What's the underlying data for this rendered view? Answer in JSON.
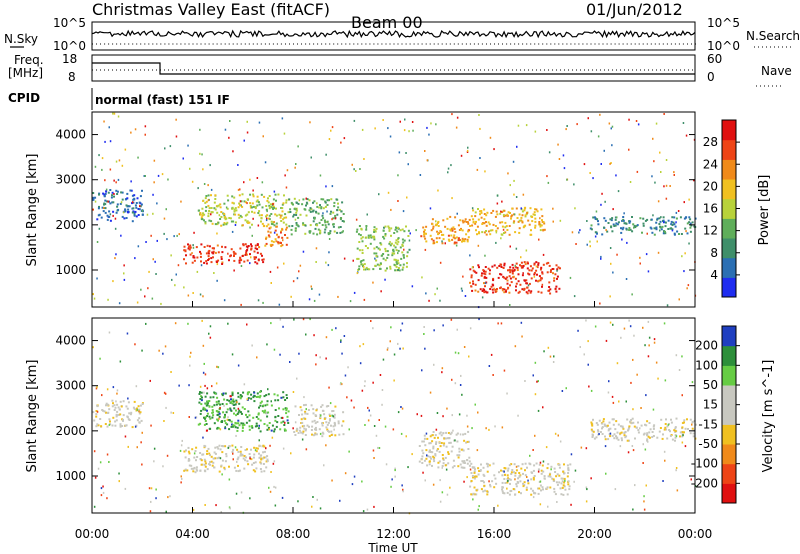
{
  "header": {
    "station": "Christmas Valley East (fitACF)",
    "beam": "Beam 00",
    "date": "01/Jun/2012"
  },
  "sky_panel": {
    "left_label": "N.Sky",
    "right_label": "N.Search",
    "left_ticks": [
      "10^5",
      "10^0"
    ],
    "right_ticks": [
      "10^5",
      "10^0"
    ]
  },
  "freq_panel": {
    "left_label_1": "Freq.",
    "left_label_2": "[MHz]",
    "right_label": "Nave",
    "left_ticks": [
      "18",
      "8"
    ],
    "right_ticks": [
      "60",
      "0"
    ]
  },
  "cpid": {
    "label": "CPID",
    "mode": "normal (fast) 151 IF"
  },
  "x_axis": {
    "title": "Time UT",
    "ticks": [
      "00:00",
      "04:00",
      "08:00",
      "12:00",
      "16:00",
      "20:00",
      "00:00"
    ]
  },
  "colors": {
    "power": [
      "#1f2df0",
      "#2b6fb3",
      "#3f8f6a",
      "#5fae5a",
      "#b8d23a",
      "#f0c020",
      "#f08a1a",
      "#ee4416",
      "#e01010"
    ],
    "velocity": [
      "#e01010",
      "#ee4416",
      "#f08a1a",
      "#f0c020",
      "#c8c8c0",
      "#c8c8c0",
      "#66cc44",
      "#2d8f3a",
      "#1f3fc0"
    ]
  },
  "chart_data": [
    {
      "type": "heatmap",
      "panel": "power",
      "xlabel": "",
      "ylabel": "Slant Range [km]",
      "xlim": [
        0,
        24
      ],
      "ylim": [
        180,
        4500
      ],
      "y_ticks": [
        1000,
        2000,
        3000,
        4000
      ],
      "colorbar": {
        "label": "Power [dB]",
        "ticks": [
          4,
          8,
          12,
          16,
          20,
          24,
          28
        ],
        "range": [
          0,
          32
        ]
      },
      "echo_regions": [
        {
          "t": [
            0.0,
            2.0
          ],
          "range": [
            2100,
            2800
          ],
          "level": 5
        },
        {
          "t": [
            3.6,
            6.8
          ],
          "range": [
            1150,
            1600
          ],
          "level": 28
        },
        {
          "t": [
            6.8,
            7.8
          ],
          "range": [
            1500,
            2000
          ],
          "level": 24
        },
        {
          "t": [
            4.2,
            7.8
          ],
          "range": [
            2000,
            2700
          ],
          "level": 16
        },
        {
          "t": [
            7.8,
            10.0
          ],
          "range": [
            1800,
            2600
          ],
          "level": 12
        },
        {
          "t": [
            10.5,
            12.6
          ],
          "range": [
            1000,
            2000
          ],
          "level": 14
        },
        {
          "t": [
            13.0,
            15.0
          ],
          "range": [
            1600,
            2200
          ],
          "level": 22
        },
        {
          "t": [
            15.0,
            18.6
          ],
          "range": [
            500,
            1200
          ],
          "level": 28
        },
        {
          "t": [
            15.0,
            18.0
          ],
          "range": [
            1800,
            2400
          ],
          "level": 20
        },
        {
          "t": [
            19.8,
            24.0
          ],
          "range": [
            1800,
            2200
          ],
          "level": 8
        }
      ]
    },
    {
      "type": "heatmap",
      "panel": "velocity",
      "xlabel": "Time UT",
      "ylabel": "Slant Range [km]",
      "xlim": [
        0,
        24
      ],
      "ylim": [
        180,
        4500
      ],
      "y_ticks": [
        1000,
        2000,
        3000,
        4000
      ],
      "colorbar": {
        "label": "Velocity [m s^-1]",
        "ticks": [
          200,
          100,
          50,
          15,
          -15,
          -50,
          -100,
          -200
        ],
        "range": [
          -250,
          250
        ]
      },
      "echo_regions": [
        {
          "t": [
            0.0,
            2.0
          ],
          "range": [
            2100,
            2700
          ],
          "level": 0
        },
        {
          "t": [
            3.6,
            7.0
          ],
          "range": [
            1100,
            1700
          ],
          "level": 0
        },
        {
          "t": [
            4.2,
            7.8
          ],
          "range": [
            2000,
            2900
          ],
          "level": 150
        },
        {
          "t": [
            8.0,
            10.0
          ],
          "range": [
            1900,
            2600
          ],
          "level": 0
        },
        {
          "t": [
            13.0,
            15.0
          ],
          "range": [
            1200,
            2000
          ],
          "level": 0
        },
        {
          "t": [
            15.0,
            19.0
          ],
          "range": [
            600,
            1300
          ],
          "level": 0
        },
        {
          "t": [
            19.8,
            24.0
          ],
          "range": [
            1800,
            2300
          ],
          "level": 0
        }
      ]
    }
  ]
}
